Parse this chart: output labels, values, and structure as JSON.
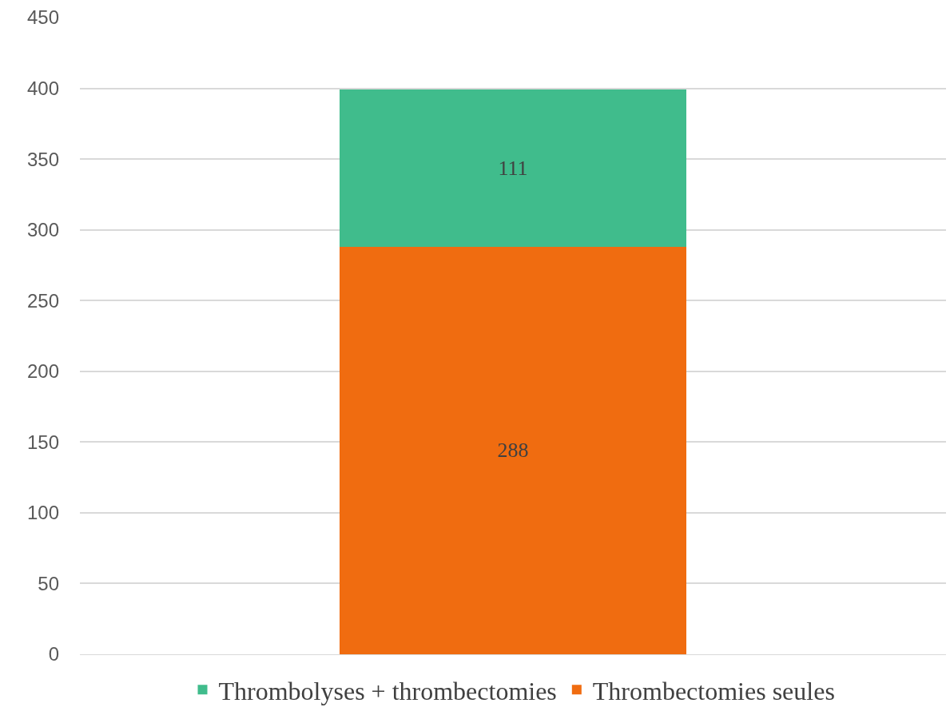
{
  "chart_data": {
    "type": "bar",
    "stacked": true,
    "categories": [
      null
    ],
    "series": [
      {
        "name": "Thrombectomies seules",
        "color": "#f06c10",
        "values": [
          288
        ]
      },
      {
        "name": "Thrombolyses + thrombectomies",
        "color": "#40bc8c",
        "values": [
          111
        ]
      }
    ],
    "ylim": [
      0,
      450
    ],
    "yticks": [
      0,
      50,
      100,
      150,
      200,
      250,
      300,
      350,
      400,
      450
    ],
    "grid": "y",
    "legend": "bottom",
    "data_labels": true
  }
}
